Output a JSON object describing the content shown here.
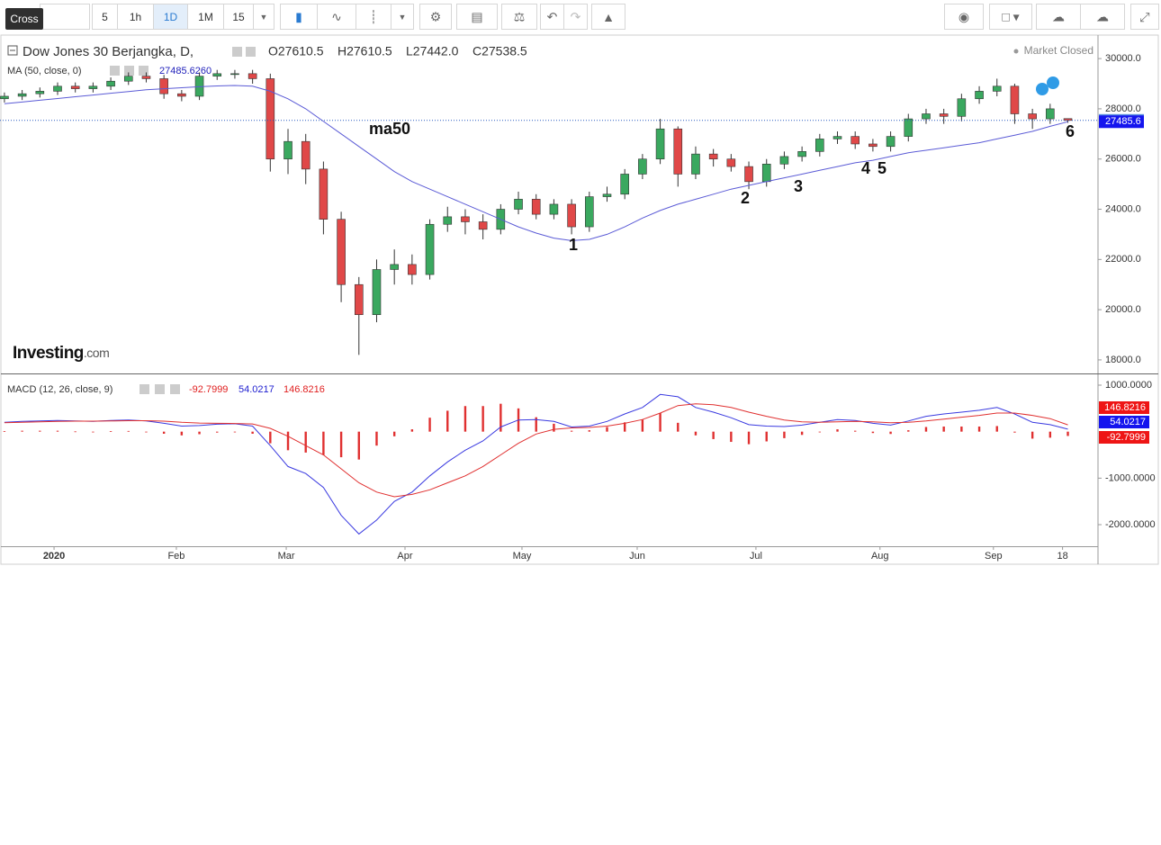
{
  "toolbar": {
    "tooltip": "Cross",
    "intervals": [
      "5",
      "1h",
      "1D",
      "1M",
      "15"
    ]
  },
  "watermark": {
    "brand": "Investing",
    "suffix": ".com"
  },
  "chart_data": [
    {
      "type": "candlestick",
      "title": "Dow Jones 30 Berjangka, D,",
      "header_ohlc": [
        "O27610.5",
        "H27610.5",
        "L27442.0",
        "C27538.5"
      ],
      "status": "Market Closed",
      "x": [
        0,
        1,
        2,
        3,
        4,
        5,
        6,
        7,
        8,
        9,
        10,
        11,
        12,
        13,
        14,
        15,
        16,
        17,
        18,
        19,
        20,
        21,
        22,
        23,
        24,
        25,
        26,
        27,
        28,
        29,
        30,
        31,
        32,
        33,
        34,
        35,
        36,
        37,
        38,
        39,
        40,
        41,
        42,
        43,
        44,
        45,
        46,
        47,
        48,
        49,
        50,
        51,
        52,
        53,
        54,
        55,
        56,
        57,
        58,
        59,
        60
      ],
      "opens": [
        28400,
        28500,
        28600,
        28700,
        28900,
        28800,
        28900,
        29100,
        29300,
        29200,
        28600,
        28500,
        29300,
        29400,
        29400,
        29200,
        26000,
        26700,
        25600,
        23600,
        21000,
        19800,
        21600,
        21800,
        21400,
        23400,
        23700,
        23500,
        23200,
        24000,
        24400,
        23800,
        24200,
        23300,
        24500,
        24600,
        25400,
        26000,
        27200,
        25400,
        26200,
        26000,
        25700,
        25100,
        25800,
        26100,
        26300,
        26800,
        26900,
        26600,
        26500,
        26900,
        27600,
        27800,
        27700,
        28400,
        28700,
        28900,
        27800,
        27600,
        27610.5
      ],
      "highs": [
        28650,
        28750,
        28850,
        29050,
        29050,
        29050,
        29250,
        29450,
        29450,
        29350,
        28750,
        29450,
        29550,
        29550,
        29550,
        29400,
        27200,
        27000,
        25900,
        23900,
        21300,
        22000,
        22400,
        22200,
        23600,
        24100,
        24000,
        23800,
        24200,
        24700,
        24600,
        24400,
        24400,
        24700,
        24900,
        25600,
        26200,
        27600,
        27300,
        26500,
        26400,
        26200,
        25900,
        26000,
        26300,
        26500,
        27000,
        27100,
        27100,
        26800,
        27100,
        27800,
        28000,
        28000,
        28600,
        28900,
        29200,
        29000,
        28000,
        28200,
        27610.5
      ],
      "lows": [
        28250,
        28350,
        28450,
        28550,
        28650,
        28650,
        28750,
        28950,
        29050,
        28400,
        28300,
        28350,
        29150,
        29200,
        29000,
        25500,
        25400,
        25000,
        23000,
        20300,
        18200,
        19500,
        21000,
        21000,
        21200,
        23100,
        23000,
        22800,
        23000,
        23800,
        23600,
        23600,
        23000,
        23100,
        24300,
        24400,
        25200,
        25800,
        24900,
        25200,
        25700,
        25500,
        24800,
        24900,
        25600,
        25900,
        26100,
        26600,
        26400,
        26300,
        26300,
        26700,
        27400,
        27400,
        27500,
        28200,
        28500,
        27400,
        27200,
        27400,
        27442
      ],
      "closes": [
        28500,
        28600,
        28700,
        28900,
        28800,
        28900,
        29100,
        29300,
        29200,
        28600,
        28500,
        29300,
        29400,
        29400,
        29200,
        26000,
        26700,
        25600,
        23600,
        21000,
        19800,
        21600,
        21800,
        21400,
        23400,
        23700,
        23500,
        23200,
        24000,
        24400,
        23800,
        24200,
        23300,
        24500,
        24600,
        25400,
        26000,
        27200,
        25400,
        26200,
        26000,
        25700,
        25100,
        25800,
        26100,
        26300,
        26800,
        26900,
        26600,
        26500,
        26900,
        27600,
        27800,
        27700,
        28400,
        28700,
        28900,
        27800,
        27600,
        28000,
        27538.5
      ],
      "up_color": "#3aa85f",
      "down_color": "#e04848",
      "ma": {
        "name": "MA (50, close, 0)",
        "legend_value": "27485.6260",
        "color": "#5b5bd6",
        "values": [
          28200,
          28270,
          28340,
          28410,
          28480,
          28550,
          28620,
          28690,
          28760,
          28800,
          28840,
          28880,
          28910,
          28930,
          28900,
          28700,
          28400,
          28000,
          27500,
          27000,
          26500,
          26000,
          25500,
          25100,
          24800,
          24500,
          24200,
          23900,
          23600,
          23300,
          23050,
          22850,
          22750,
          22800,
          23000,
          23300,
          23650,
          23950,
          24200,
          24400,
          24600,
          24800,
          24950,
          25100,
          25250,
          25400,
          25550,
          25700,
          25850,
          25950,
          26100,
          26250,
          26350,
          26450,
          26550,
          26650,
          26800,
          26950,
          27100,
          27300,
          27485.6
        ]
      },
      "annotations": [
        "ma50",
        "1",
        "2",
        "3",
        "4",
        "5",
        "6"
      ],
      "xlim": [
        -0.25,
        61.7
      ],
      "ylim": [
        17460,
        30900
      ],
      "yticks": [
        {
          "value": 18000,
          "label": "18000.0"
        },
        {
          "value": 20000,
          "label": "20000.0"
        },
        {
          "value": 22000,
          "label": "22000.0"
        },
        {
          "value": 24000,
          "label": "24000.0"
        },
        {
          "value": 26000,
          "label": "26000.0"
        },
        {
          "value": 28000,
          "label": "28000.0"
        },
        {
          "value": 30000,
          "label": "30000.0"
        }
      ],
      "grid": false
    },
    {
      "type": "macd",
      "title": "MACD (12, 26, close, 9)",
      "x": [
        0,
        1,
        2,
        3,
        4,
        5,
        6,
        7,
        8,
        9,
        10,
        11,
        12,
        13,
        14,
        15,
        16,
        17,
        18,
        19,
        20,
        21,
        22,
        23,
        24,
        25,
        26,
        27,
        28,
        29,
        30,
        31,
        32,
        33,
        34,
        35,
        36,
        37,
        38,
        39,
        40,
        41,
        42,
        43,
        44,
        45,
        46,
        47,
        48,
        49,
        50,
        51,
        52,
        53,
        54,
        55,
        56,
        57,
        58,
        59,
        60
      ],
      "series": [
        {
          "color": "#e03030",
          "kind": "histogram",
          "values": [
            10,
            20,
            20,
            20,
            5,
            -5,
            10,
            15,
            -5,
            -45,
            -80,
            -55,
            -20,
            -5,
            -45,
            -250,
            -400,
            -450,
            -500,
            -550,
            -600,
            -300,
            -100,
            50,
            300,
            450,
            550,
            550,
            600,
            500,
            310,
            170,
            20,
            30,
            100,
            200,
            260,
            400,
            190,
            -80,
            -160,
            -220,
            -270,
            -210,
            -140,
            -70,
            0,
            50,
            20,
            -30,
            -50,
            30,
            100,
            110,
            110,
            110,
            120,
            -20,
            -150,
            -130,
            -92.7999
          ]
        },
        {
          "color": "#3a3ae0",
          "kind": "line",
          "values": [
            200,
            220,
            230,
            240,
            230,
            220,
            240,
            250,
            230,
            180,
            120,
            130,
            160,
            170,
            120,
            -300,
            -750,
            -900,
            -1200,
            -1800,
            -2200,
            -1900,
            -1500,
            -1300,
            -950,
            -650,
            -400,
            -200,
            100,
            250,
            260,
            220,
            100,
            120,
            220,
            380,
            520,
            800,
            750,
            520,
            420,
            300,
            150,
            120,
            110,
            140,
            200,
            260,
            240,
            180,
            140,
            230,
            330,
            380,
            420,
            460,
            520,
            380,
            200,
            150,
            54.0217
          ]
        },
        {
          "color": "#e03030",
          "kind": "line",
          "values": [
            190,
            200,
            210,
            220,
            225,
            225,
            230,
            235,
            235,
            225,
            200,
            185,
            180,
            175,
            165,
            70,
            -100,
            -300,
            -500,
            -800,
            -1100,
            -1300,
            -1400,
            -1350,
            -1250,
            -1100,
            -950,
            -750,
            -500,
            -250,
            -50,
            50,
            80,
            90,
            120,
            180,
            260,
            400,
            560,
            600,
            580,
            520,
            420,
            330,
            250,
            210,
            200,
            210,
            220,
            210,
            190,
            200,
            230,
            270,
            310,
            350,
            400,
            400,
            350,
            280,
            146.8216
          ]
        }
      ],
      "xlim": [
        -0.25,
        61.7
      ],
      "ylim": [
        -2464,
        1232
      ],
      "yticks": [
        {
          "value": 1000,
          "label": "1000.0000"
        },
        {
          "value": -1000,
          "label": "-1000.0000"
        },
        {
          "value": -2000,
          "label": "-2000.0000"
        }
      ],
      "xticks": [
        {
          "value": 2.8,
          "label": "2020"
        },
        {
          "value": 9.7,
          "label": "Feb"
        },
        {
          "value": 15.9,
          "label": "Mar"
        },
        {
          "value": 22.6,
          "label": "Apr"
        },
        {
          "value": 29.2,
          "label": "May"
        },
        {
          "value": 35.7,
          "label": "Jun"
        },
        {
          "value": 42.4,
          "label": "Jul"
        },
        {
          "value": 49.4,
          "label": "Aug"
        },
        {
          "value": 55.8,
          "label": "Sep"
        },
        {
          "value": 59.7,
          "label": "18"
        }
      ],
      "grid": false
    }
  ]
}
